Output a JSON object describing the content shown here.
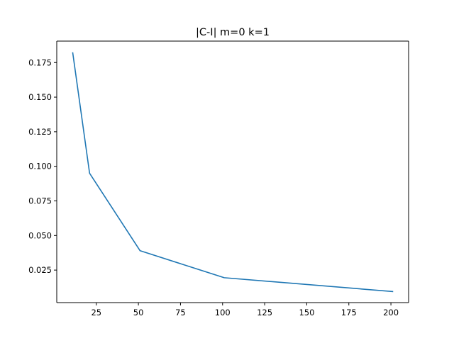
{
  "chart_data": {
    "type": "line",
    "title": "|C-I| m=0 k=1",
    "xlabel": "",
    "ylabel": "",
    "xlim": [
      1.5,
      210.5
    ],
    "ylim": [
      0.0015,
      0.1905
    ],
    "x_ticks": [
      25,
      50,
      75,
      100,
      125,
      150,
      175,
      200
    ],
    "y_ticks": [
      0.025,
      0.05,
      0.075,
      0.1,
      0.125,
      0.15,
      0.175
    ],
    "grid": false,
    "series": [
      {
        "name": "",
        "color": "#1f77b4",
        "x": [
          11,
          21,
          51,
          101,
          201
        ],
        "y": [
          0.182,
          0.095,
          0.039,
          0.0195,
          0.0095
        ]
      }
    ]
  }
}
